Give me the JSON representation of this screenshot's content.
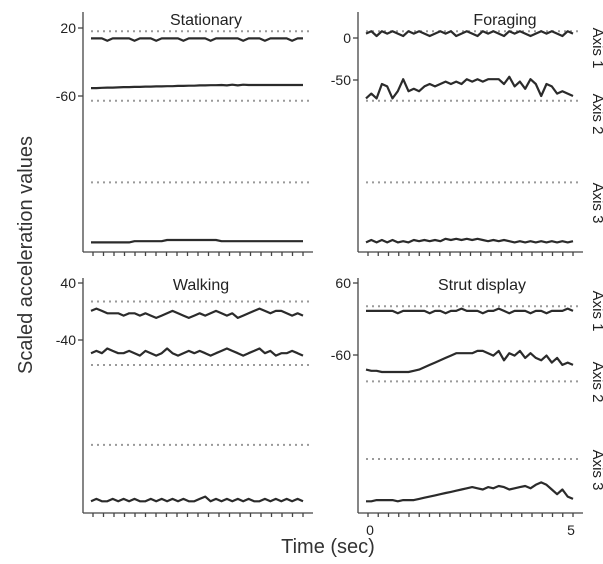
{
  "figure": {
    "y_label": "Scaled acceleration values",
    "x_label": "Time (sec)",
    "axis_tags": [
      "Axis 1",
      "Axis 2",
      "Axis 3"
    ]
  },
  "chart_data": [
    {
      "type": "line",
      "title": "Stationary",
      "ytick_labels": [
        "20",
        "-60"
      ],
      "ref_levels_rel": [
        0.08,
        0.37,
        0.71
      ],
      "series": [
        {
          "values": [
            0.11,
            0.11,
            0.11,
            0.12,
            0.11,
            0.11,
            0.11,
            0.11,
            0.12,
            0.11,
            0.11,
            0.11,
            0.12,
            0.11,
            0.11,
            0.11,
            0.11,
            0.12,
            0.11,
            0.11,
            0.11,
            0.11,
            0.12,
            0.11,
            0.11,
            0.11,
            0.11,
            0.11,
            0.12,
            0.11,
            0.11,
            0.11,
            0.12,
            0.11,
            0.11,
            0.11,
            0.11,
            0.12,
            0.11,
            0.11
          ]
        },
        {
          "values": [
            0.317,
            0.317,
            0.316,
            0.315,
            0.315,
            0.314,
            0.313,
            0.313,
            0.312,
            0.312,
            0.311,
            0.311,
            0.31,
            0.31,
            0.309,
            0.309,
            0.308,
            0.308,
            0.307,
            0.307,
            0.306,
            0.306,
            0.305,
            0.305,
            0.304,
            0.306,
            0.303,
            0.306,
            0.303,
            0.304,
            0.304,
            0.304,
            0.304,
            0.304,
            0.304,
            0.304,
            0.304,
            0.304,
            0.304,
            0.304
          ]
        },
        {
          "values": [
            0.96,
            0.96,
            0.96,
            0.96,
            0.96,
            0.96,
            0.96,
            0.96,
            0.955,
            0.955,
            0.955,
            0.955,
            0.955,
            0.955,
            0.95,
            0.95,
            0.95,
            0.95,
            0.95,
            0.95,
            0.95,
            0.95,
            0.95,
            0.95,
            0.955,
            0.955,
            0.955,
            0.955,
            0.955,
            0.955,
            0.955,
            0.955,
            0.955,
            0.955,
            0.955,
            0.955,
            0.955,
            0.955,
            0.955,
            0.955
          ]
        }
      ]
    },
    {
      "type": "line",
      "title": "Foraging",
      "ytick_labels": [
        "0",
        "-50"
      ],
      "ref_levels_rel": [
        0.08,
        0.37,
        0.71
      ],
      "series": [
        {
          "values": [
            0.09,
            0.08,
            0.1,
            0.08,
            0.09,
            0.08,
            0.09,
            0.1,
            0.08,
            0.09,
            0.08,
            0.09,
            0.1,
            0.09,
            0.08,
            0.09,
            0.08,
            0.1,
            0.09,
            0.08,
            0.09,
            0.1,
            0.08,
            0.09,
            0.08,
            0.09,
            0.1,
            0.08,
            0.09,
            0.08,
            0.09,
            0.1,
            0.09,
            0.08,
            0.09,
            0.08,
            0.09,
            0.1,
            0.08,
            0.09
          ]
        },
        {
          "values": [
            0.36,
            0.34,
            0.36,
            0.3,
            0.31,
            0.36,
            0.33,
            0.28,
            0.33,
            0.32,
            0.33,
            0.31,
            0.3,
            0.31,
            0.3,
            0.29,
            0.3,
            0.29,
            0.3,
            0.28,
            0.29,
            0.28,
            0.29,
            0.28,
            0.28,
            0.28,
            0.3,
            0.27,
            0.31,
            0.29,
            0.32,
            0.28,
            0.3,
            0.35,
            0.3,
            0.31,
            0.34,
            0.33,
            0.34,
            0.35
          ]
        },
        {
          "values": [
            0.96,
            0.95,
            0.96,
            0.95,
            0.96,
            0.95,
            0.96,
            0.955,
            0.96,
            0.95,
            0.955,
            0.95,
            0.955,
            0.95,
            0.955,
            0.945,
            0.95,
            0.945,
            0.95,
            0.945,
            0.95,
            0.945,
            0.95,
            0.955,
            0.95,
            0.955,
            0.95,
            0.955,
            0.96,
            0.955,
            0.96,
            0.955,
            0.96,
            0.955,
            0.96,
            0.955,
            0.96,
            0.955,
            0.96,
            0.955
          ]
        }
      ]
    },
    {
      "type": "line",
      "title": "Walking",
      "ytick_labels": [
        "40",
        "-40"
      ],
      "ref_levels_rel": [
        0.1,
        0.37,
        0.71
      ],
      "series": [
        {
          "values": [
            0.14,
            0.13,
            0.14,
            0.15,
            0.15,
            0.15,
            0.16,
            0.15,
            0.15,
            0.16,
            0.15,
            0.16,
            0.17,
            0.16,
            0.15,
            0.14,
            0.15,
            0.16,
            0.17,
            0.16,
            0.15,
            0.16,
            0.15,
            0.14,
            0.15,
            0.16,
            0.15,
            0.17,
            0.16,
            0.15,
            0.14,
            0.13,
            0.14,
            0.15,
            0.14,
            0.14,
            0.15,
            0.16,
            0.15,
            0.16
          ]
        },
        {
          "values": [
            0.32,
            0.31,
            0.32,
            0.3,
            0.31,
            0.32,
            0.32,
            0.31,
            0.32,
            0.33,
            0.31,
            0.32,
            0.33,
            0.32,
            0.3,
            0.32,
            0.33,
            0.32,
            0.31,
            0.32,
            0.31,
            0.32,
            0.33,
            0.32,
            0.31,
            0.3,
            0.31,
            0.32,
            0.33,
            0.32,
            0.31,
            0.3,
            0.32,
            0.31,
            0.33,
            0.32,
            0.32,
            0.31,
            0.32,
            0.33
          ]
        },
        {
          "values": [
            0.95,
            0.94,
            0.95,
            0.95,
            0.94,
            0.95,
            0.94,
            0.95,
            0.94,
            0.95,
            0.95,
            0.94,
            0.95,
            0.94,
            0.95,
            0.94,
            0.95,
            0.94,
            0.95,
            0.95,
            0.94,
            0.93,
            0.95,
            0.94,
            0.95,
            0.94,
            0.95,
            0.94,
            0.95,
            0.94,
            0.95,
            0.95,
            0.94,
            0.95,
            0.94,
            0.95,
            0.94,
            0.95,
            0.94,
            0.95
          ]
        }
      ]
    },
    {
      "type": "line",
      "title": "Strut display",
      "ytick_labels": [
        "60",
        "-60"
      ],
      "xtick_labels": [
        "0",
        "5"
      ],
      "xlim": [
        0,
        5
      ],
      "ref_levels_rel": [
        0.12,
        0.44,
        0.77
      ],
      "series": [
        {
          "values": [
            0.14,
            0.14,
            0.14,
            0.14,
            0.14,
            0.14,
            0.15,
            0.14,
            0.14,
            0.14,
            0.14,
            0.14,
            0.15,
            0.14,
            0.14,
            0.15,
            0.14,
            0.14,
            0.13,
            0.14,
            0.14,
            0.14,
            0.15,
            0.14,
            0.14,
            0.13,
            0.14,
            0.15,
            0.14,
            0.14,
            0.14,
            0.15,
            0.14,
            0.14,
            0.15,
            0.14,
            0.14,
            0.14,
            0.13,
            0.14
          ]
        },
        {
          "values": [
            0.39,
            0.395,
            0.395,
            0.4,
            0.4,
            0.4,
            0.4,
            0.4,
            0.4,
            0.395,
            0.39,
            0.38,
            0.37,
            0.36,
            0.35,
            0.34,
            0.33,
            0.32,
            0.32,
            0.32,
            0.32,
            0.31,
            0.31,
            0.32,
            0.33,
            0.31,
            0.35,
            0.32,
            0.33,
            0.31,
            0.34,
            0.32,
            0.34,
            0.35,
            0.33,
            0.36,
            0.34,
            0.37,
            0.36,
            0.37
          ]
        },
        {
          "values": [
            0.95,
            0.95,
            0.945,
            0.945,
            0.945,
            0.945,
            0.95,
            0.945,
            0.945,
            0.945,
            0.94,
            0.935,
            0.93,
            0.925,
            0.92,
            0.915,
            0.91,
            0.905,
            0.9,
            0.895,
            0.89,
            0.895,
            0.9,
            0.89,
            0.895,
            0.885,
            0.89,
            0.9,
            0.895,
            0.89,
            0.885,
            0.895,
            0.88,
            0.87,
            0.88,
            0.9,
            0.92,
            0.9,
            0.93,
            0.94
          ]
        }
      ]
    }
  ]
}
